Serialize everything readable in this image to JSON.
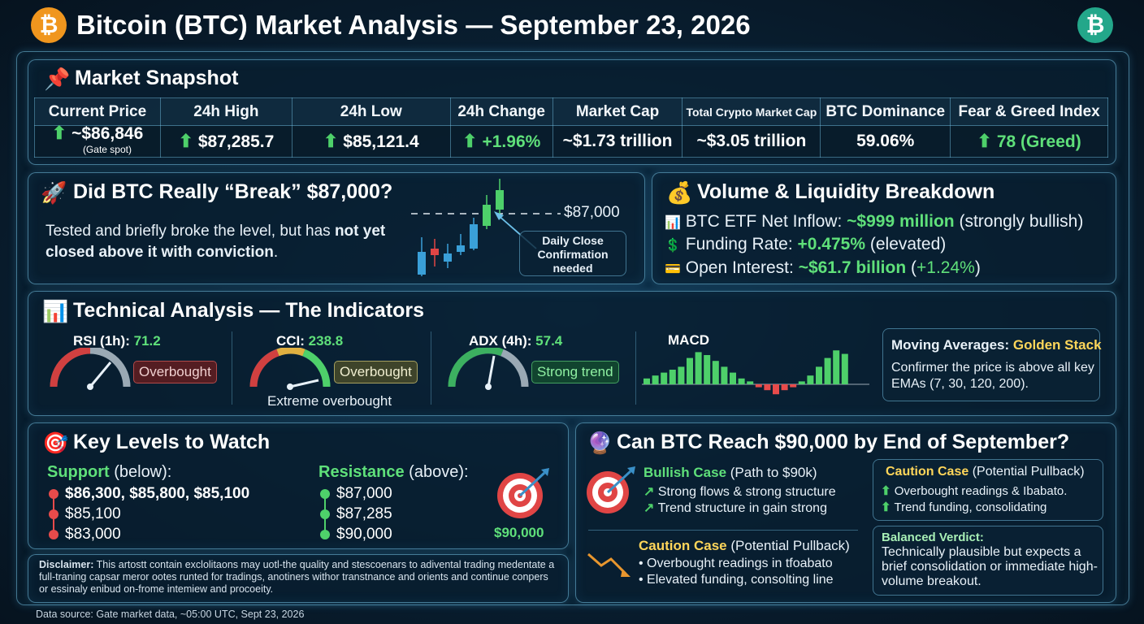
{
  "header": {
    "title": "Bitcoin (BTC) Market Analysis — September 23, 2026",
    "coin_symbol": "₿"
  },
  "snapshot": {
    "title": "Market Snapshot",
    "icon": "pushpin-icon",
    "columns": [
      "Current Price",
      "24h High",
      "24h Low",
      "24h Change",
      "Market Cap",
      "Total Crypto Market Cap",
      "BTC Dominance",
      "Fear & Greed Index"
    ],
    "values": [
      "~$86,846",
      "$87,285.7",
      "$85,121.4",
      "+1.96%",
      "~$1.73 trillion",
      "~$3.05 trillion",
      "59.06%",
      "78 (Greed)"
    ],
    "price_note": "(Gate spot)"
  },
  "break": {
    "title": "Did BTC Really “Break” $87,000?",
    "text_plain": "Tested and briefly broke the level, but has ",
    "text_bold": "not yet closed above it with conviction",
    "text_end": ".",
    "level_label": "$87,000",
    "callout": "Daily Close Confirmation needed"
  },
  "volume": {
    "title": "Volume & Liquidity Breakdown",
    "items": [
      {
        "label": "BTC ETF Net Inflow: ",
        "value": "~$999 million",
        "note": " (strongly bullish)"
      },
      {
        "label": "Funding Rate: ",
        "value": "+0.475%",
        "note": " (elevated)"
      },
      {
        "label": "Open Interest: ",
        "value": "~$61.7 billion",
        "note_pre": " (",
        "note_val": "+1.24%",
        "note_post": ")"
      }
    ]
  },
  "technical": {
    "title": "Technical Analysis — The Indicators",
    "rsi": {
      "label": "RSI (1h): ",
      "value": "71.2",
      "badge": "Overbought"
    },
    "cci": {
      "label": "CCI: ",
      "value": "238.8",
      "badge": "Overbought",
      "note": "Extreme overbought"
    },
    "adx": {
      "label": "ADX (4h): ",
      "value": "57.4",
      "badge": "Strong trend"
    },
    "macd": {
      "label": "MACD"
    },
    "ma": {
      "label": "Moving Averages: ",
      "value": "Golden Stack",
      "text": "Confirmer the price is above all key EMAs (7, 30, 120, 200)."
    }
  },
  "levels": {
    "title": "Key Levels to Watch",
    "support_label": "Support",
    "support_note": " (below):",
    "support": [
      "$86,300, $85,800, $85,100",
      "$85,100",
      "$83,000"
    ],
    "resistance_label": "Resistance",
    "resistance_note": " (above):",
    "resistance": [
      "$87,000",
      "$87,285",
      "$90,000"
    ],
    "target": "$90,000"
  },
  "disclaimer": {
    "label": "Disclaimer:",
    "text": " This artostt contain exclolitaons may uotl-the quality and stescoenars to adivental trading medentate a full-traning capsar meror ootes runted for tradings, anotiners withor transtnance and orients and continue conpers or essinaly enibud on-frome intemiew and procoeity."
  },
  "reach": {
    "title": "Can BTC Reach $90,000 by End of September?",
    "bull_title": "Bullish Case",
    "bull_note": " (Path to $90k)",
    "bull_items": [
      "Strong flows & strong structure",
      "Trend structure in gain strong"
    ],
    "caution_title": "Caution Case",
    "caution_note": " (Potential Pullback)",
    "caution_items": [
      "Overbought readings in tfoabato",
      "Elevated funding, consolting line"
    ],
    "caution2_title": "Caution Case",
    "caution2_note": " (Potential Pullback)",
    "caution2_items": [
      "Overbought readings & Ibabato.",
      "Trend funding, consolidating"
    ],
    "verdict_title": "Balanced Verdict:",
    "verdict_text": "Technically plausible but expects a brief consolidation or immediate high-volume breakout."
  },
  "footer": {
    "source": "Data source: Gate market data, ~05:00 UTC, Sept 23, 2026"
  },
  "colors": {
    "accent_green": "#4ed06a",
    "accent_yellow": "#ffd65a",
    "bearish_red": "#e84b4b",
    "bitcoin_orange": "#f0961e",
    "bitcoin_teal": "#23a78a"
  },
  "chart_data": [
    {
      "type": "bar",
      "title": "MACD",
      "values": [
        1,
        1.5,
        2,
        2.5,
        3,
        4.5,
        5.5,
        5,
        4,
        3,
        2,
        1,
        0.5,
        -0.5,
        -1,
        -1.7,
        -1,
        -0.5,
        0.5,
        1.5,
        3,
        4.5,
        5.8,
        5.2
      ],
      "ylim": [
        -2.5,
        6.5
      ]
    }
  ]
}
